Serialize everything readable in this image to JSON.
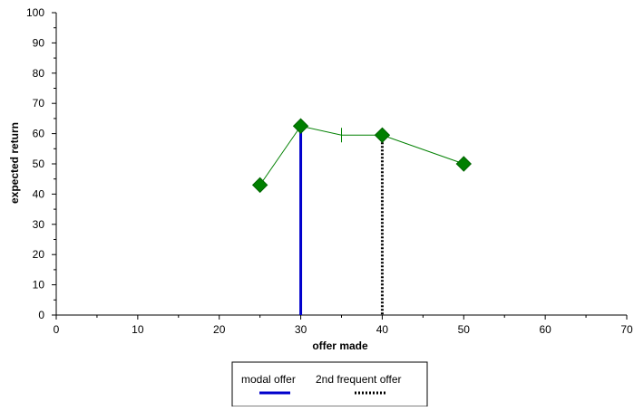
{
  "chart_data": {
    "type": "line",
    "title": "",
    "xlabel": "offer made",
    "ylabel": "expected return",
    "xlim": [
      0,
      70
    ],
    "ylim": [
      0,
      100
    ],
    "x_ticks": [
      0,
      10,
      20,
      30,
      40,
      50,
      60,
      70
    ],
    "y_ticks": [
      0,
      10,
      20,
      30,
      40,
      50,
      60,
      70,
      80,
      90,
      100
    ],
    "grid": false,
    "series": [
      {
        "x": [
          25,
          30,
          35,
          40,
          50
        ],
        "y": [
          43,
          62.5,
          59.5,
          59.5,
          50
        ],
        "marker_at": [
          true,
          true,
          false,
          true,
          true
        ],
        "color": "#008000",
        "marker": "diamond"
      }
    ],
    "reference_lines": [
      {
        "name": "modal offer",
        "x": 30,
        "y_top": 62.5,
        "color": "#0000cc",
        "style": "solid"
      },
      {
        "name": "2nd frequent offer",
        "x": 40,
        "y_top": 59.5,
        "color": "#000000",
        "style": "dotted"
      }
    ],
    "legend": {
      "placement": "bottom",
      "entries": [
        {
          "label": "modal offer",
          "color": "#0000cc",
          "style": "solid"
        },
        {
          "label": "2nd frequent offer",
          "color": "#000000",
          "style": "dotted"
        }
      ]
    }
  }
}
